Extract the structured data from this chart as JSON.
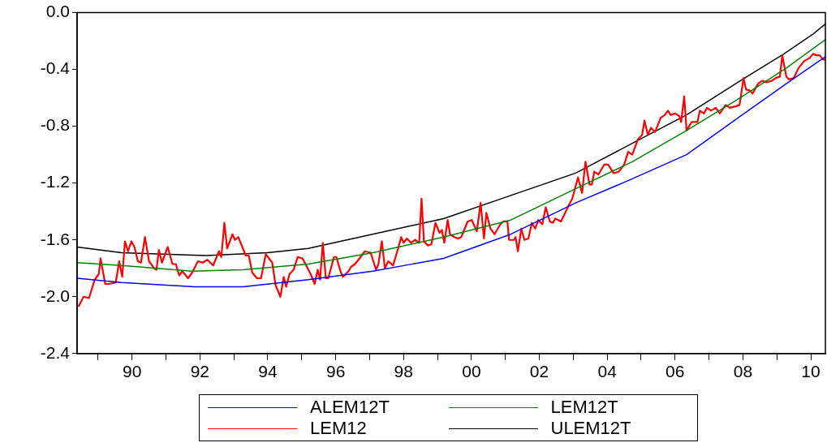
{
  "chart_data": {
    "type": "line",
    "xlim": [
      1988.38,
      2010.43
    ],
    "ylim": [
      -2.4,
      0
    ],
    "xticks": [
      {
        "value": 1989,
        "label": null
      },
      {
        "value": 1990,
        "label": "90"
      },
      {
        "value": 1991,
        "label": null
      },
      {
        "value": 1992,
        "label": "92"
      },
      {
        "value": 1993,
        "label": null
      },
      {
        "value": 1994,
        "label": "94"
      },
      {
        "value": 1995,
        "label": null
      },
      {
        "value": 1996,
        "label": "96"
      },
      {
        "value": 1997,
        "label": null
      },
      {
        "value": 1998,
        "label": "98"
      },
      {
        "value": 1999,
        "label": null
      },
      {
        "value": 2000,
        "label": "00"
      },
      {
        "value": 2001,
        "label": null
      },
      {
        "value": 2002,
        "label": "02"
      },
      {
        "value": 2003,
        "label": null
      },
      {
        "value": 2004,
        "label": "04"
      },
      {
        "value": 2005,
        "label": null
      },
      {
        "value": 2006,
        "label": "06"
      },
      {
        "value": 2007,
        "label": null
      },
      {
        "value": 2008,
        "label": "08"
      },
      {
        "value": 2009,
        "label": null
      },
      {
        "value": 2010,
        "label": "10"
      }
    ],
    "yticks": [
      {
        "value": -2.4,
        "label": "-2.4"
      },
      {
        "value": -2,
        "label": "-2.0"
      },
      {
        "value": -1.6,
        "label": "-1.6"
      },
      {
        "value": -1.2,
        "label": "-1.2"
      },
      {
        "value": -0.8,
        "label": "-0.8"
      },
      {
        "value": -0.4,
        "label": "-0.4"
      },
      {
        "value": 0,
        "label": "0.0"
      }
    ],
    "grid": false,
    "legend": "bottom",
    "marker": "none",
    "line_style": "solid",
    "series": [
      {
        "name": "ALEM12T",
        "color": "#0000ff",
        "x": [
          1988.38,
          1989.69,
          1991.84,
          1993.27,
          1995.19,
          1997.1,
          1999.18,
          2001.16,
          2003.07,
          2004.74,
          2006.34,
          2007.92,
          2009.28,
          2010.43
        ],
        "values": [
          -1.87,
          -1.9,
          -1.93,
          -1.93,
          -1.88,
          -1.82,
          -1.73,
          -1.56,
          -1.34,
          -1.17,
          -1.0,
          -0.73,
          -0.5,
          -0.31
        ]
      },
      {
        "name": "LEM12T",
        "color": "#008000",
        "x": [
          1988.38,
          1989.69,
          1991.77,
          1993.27,
          1995.19,
          1997.1,
          1999.18,
          2001.16,
          2003.07,
          2004.74,
          2006.34,
          2007.85,
          2009.28,
          2010.43
        ],
        "values": [
          -1.76,
          -1.78,
          -1.82,
          -1.81,
          -1.77,
          -1.69,
          -1.58,
          -1.46,
          -1.24,
          -1.05,
          -0.83,
          -0.61,
          -0.39,
          -0.19
        ]
      },
      {
        "name": "LEM12",
        "color": "#ff0000",
        "x": [
          1988.42,
          1988.57,
          1988.73,
          1988.9,
          1989.02,
          1989.07,
          1989.21,
          1989.33,
          1989.52,
          1989.62,
          1989.71,
          1989.79,
          1989.88,
          1989.98,
          1990.07,
          1990.17,
          1990.26,
          1990.38,
          1990.5,
          1990.65,
          1990.72,
          1990.79,
          1990.88,
          1991.05,
          1991.19,
          1991.29,
          1991.39,
          1991.48,
          1991.65,
          1991.77,
          1991.94,
          1992.08,
          1992.22,
          1992.39,
          1992.56,
          1992.63,
          1992.72,
          1992.8,
          1992.96,
          1993.03,
          1993.13,
          1993.25,
          1993.35,
          1993.44,
          1993.54,
          1993.68,
          1993.8,
          1993.94,
          1994.13,
          1994.23,
          1994.37,
          1994.47,
          1994.54,
          1994.64,
          1994.76,
          1994.88,
          1995.02,
          1995.11,
          1995.26,
          1995.38,
          1995.47,
          1995.54,
          1995.62,
          1995.71,
          1995.78,
          1995.95,
          1996.02,
          1996.14,
          1996.21,
          1996.38,
          1996.45,
          1996.57,
          1996.67,
          1996.86,
          1997.03,
          1997.19,
          1997.26,
          1997.36,
          1997.45,
          1997.55,
          1997.69,
          1997.84,
          1997.93,
          1998.0,
          1998.1,
          1998.22,
          1998.34,
          1998.46,
          1998.53,
          1998.6,
          1998.72,
          1998.82,
          1998.94,
          1999.06,
          1999.13,
          1999.2,
          1999.3,
          1999.37,
          1999.49,
          1999.61,
          1999.7,
          1999.89,
          2000.01,
          2000.16,
          2000.27,
          2000.37,
          2000.44,
          2000.56,
          2000.68,
          2000.85,
          2000.94,
          2001.06,
          2001.11,
          2001.25,
          2001.3,
          2001.37,
          2001.47,
          2001.56,
          2001.68,
          2001.78,
          2001.88,
          2001.97,
          2002.09,
          2002.19,
          2002.31,
          2002.4,
          2002.47,
          2002.64,
          2002.74,
          2002.86,
          2002.97,
          2003.14,
          2003.26,
          2003.36,
          2003.48,
          2003.55,
          2003.62,
          2003.74,
          2003.91,
          2004.03,
          2004.19,
          2004.34,
          2004.5,
          2004.62,
          2004.74,
          2004.91,
          2005.03,
          2005.1,
          2005.2,
          2005.29,
          2005.41,
          2005.58,
          2005.7,
          2005.79,
          2005.87,
          2006.01,
          2006.13,
          2006.18,
          2006.27,
          2006.34,
          2006.49,
          2006.66,
          2006.73,
          2006.85,
          2006.94,
          2007.06,
          2007.2,
          2007.32,
          2007.49,
          2007.61,
          2007.78,
          2007.9,
          2008.02,
          2008.09,
          2008.21,
          2008.28,
          2008.45,
          2008.57,
          2008.69,
          2008.85,
          2008.97,
          2009.09,
          2009.16,
          2009.28,
          2009.36,
          2009.5,
          2009.64,
          2009.81,
          2009.96,
          2010.07,
          2010.17,
          2010.26,
          2010.36,
          2010.43
        ],
        "values": [
          -2.07,
          -2.0,
          -2.01,
          -1.88,
          -1.84,
          -1.73,
          -1.91,
          -1.91,
          -1.9,
          -1.75,
          -1.86,
          -1.61,
          -1.68,
          -1.61,
          -1.65,
          -1.75,
          -1.76,
          -1.58,
          -1.75,
          -1.8,
          -1.81,
          -1.67,
          -1.76,
          -1.65,
          -1.77,
          -1.77,
          -1.85,
          -1.82,
          -1.87,
          -1.83,
          -1.75,
          -1.76,
          -1.74,
          -1.78,
          -1.68,
          -1.72,
          -1.48,
          -1.66,
          -1.56,
          -1.6,
          -1.58,
          -1.65,
          -1.71,
          -1.71,
          -1.83,
          -1.87,
          -1.87,
          -1.7,
          -1.76,
          -1.92,
          -2.0,
          -1.86,
          -1.93,
          -1.84,
          -1.81,
          -1.72,
          -1.73,
          -1.77,
          -1.84,
          -1.91,
          -1.81,
          -1.88,
          -1.62,
          -1.87,
          -1.87,
          -1.72,
          -1.72,
          -1.82,
          -1.86,
          -1.82,
          -1.79,
          -1.77,
          -1.74,
          -1.68,
          -1.69,
          -1.81,
          -1.77,
          -1.61,
          -1.8,
          -1.75,
          -1.78,
          -1.66,
          -1.58,
          -1.62,
          -1.59,
          -1.62,
          -1.6,
          -1.62,
          -1.31,
          -1.61,
          -1.64,
          -1.63,
          -1.48,
          -1.55,
          -1.53,
          -1.62,
          -1.46,
          -1.56,
          -1.58,
          -1.59,
          -1.58,
          -1.47,
          -1.46,
          -1.54,
          -1.34,
          -1.59,
          -1.41,
          -1.52,
          -1.56,
          -1.49,
          -1.47,
          -1.47,
          -1.6,
          -1.6,
          -1.58,
          -1.68,
          -1.52,
          -1.6,
          -1.59,
          -1.48,
          -1.52,
          -1.46,
          -1.49,
          -1.37,
          -1.47,
          -1.48,
          -1.45,
          -1.47,
          -1.42,
          -1.36,
          -1.31,
          -1.16,
          -1.27,
          -1.05,
          -1.21,
          -1.21,
          -1.12,
          -1.14,
          -1.07,
          -1.07,
          -1.13,
          -1.12,
          -1.07,
          -0.98,
          -1.0,
          -0.89,
          -0.86,
          -0.76,
          -0.86,
          -0.81,
          -0.84,
          -0.74,
          -0.72,
          -0.69,
          -0.72,
          -0.71,
          -0.73,
          -0.77,
          -0.59,
          -0.83,
          -0.77,
          -0.77,
          -0.69,
          -0.71,
          -0.67,
          -0.69,
          -0.67,
          -0.71,
          -0.65,
          -0.67,
          -0.66,
          -0.65,
          -0.46,
          -0.54,
          -0.55,
          -0.57,
          -0.5,
          -0.48,
          -0.49,
          -0.48,
          -0.46,
          -0.45,
          -0.3,
          -0.45,
          -0.47,
          -0.46,
          -0.39,
          -0.34,
          -0.32,
          -0.29,
          -0.3,
          -0.3,
          -0.33,
          -0.33
        ]
      },
      {
        "name": "ULEM12T",
        "color": "#000000",
        "x": [
          1988.38,
          1989.69,
          1992.15,
          1993.99,
          1995.19,
          1999.18,
          2003.07,
          2004.74,
          2006.34,
          2007.92,
          2009.21,
          2010.07,
          2010.43
        ],
        "values": [
          -1.65,
          -1.69,
          -1.71,
          -1.69,
          -1.66,
          -1.45,
          -1.13,
          -0.92,
          -0.72,
          -0.48,
          -0.29,
          -0.15,
          -0.08
        ]
      }
    ]
  }
}
